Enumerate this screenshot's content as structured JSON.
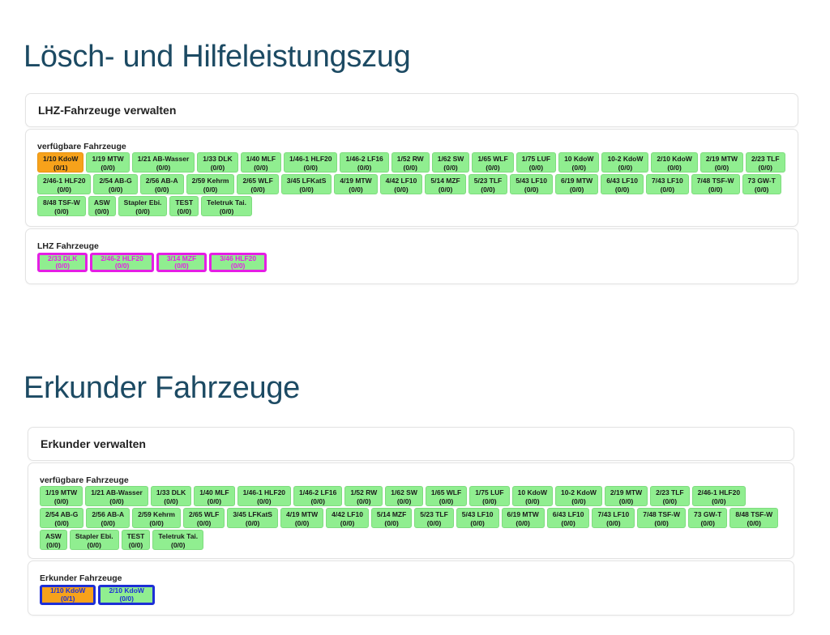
{
  "lhz": {
    "heading": "Lösch- und Hilfeleistungszug",
    "manage_title": "LHZ-Fahrzeuge verwalten",
    "available_label": "verfügbare Fahrzeuge",
    "assigned_label": "LHZ Fahrzeuge",
    "available": [
      {
        "name": "1/10 KdoW",
        "count": "(0/1)",
        "status": "orange"
      },
      {
        "name": "1/19 MTW",
        "count": "(0/0)"
      },
      {
        "name": "1/21 AB-Wasser",
        "count": "(0/0)"
      },
      {
        "name": "1/33 DLK",
        "count": "(0/0)"
      },
      {
        "name": "1/40 MLF",
        "count": "(0/0)"
      },
      {
        "name": "1/46-1 HLF20",
        "count": "(0/0)"
      },
      {
        "name": "1/46-2 LF16",
        "count": "(0/0)"
      },
      {
        "name": "1/52 RW",
        "count": "(0/0)"
      },
      {
        "name": "1/62 SW",
        "count": "(0/0)"
      },
      {
        "name": "1/65 WLF",
        "count": "(0/0)"
      },
      {
        "name": "1/75 LUF",
        "count": "(0/0)"
      },
      {
        "name": "10 KdoW",
        "count": "(0/0)"
      },
      {
        "name": "10-2 KdoW",
        "count": "(0/0)"
      },
      {
        "name": "2/10 KdoW",
        "count": "(0/0)"
      },
      {
        "name": "2/19 MTW",
        "count": "(0/0)"
      },
      {
        "name": "2/23 TLF",
        "count": "(0/0)"
      },
      {
        "name": "2/46-1 HLF20",
        "count": "(0/0)"
      },
      {
        "name": "2/54 AB-G",
        "count": "(0/0)"
      },
      {
        "name": "2/56 AB-A",
        "count": "(0/0)"
      },
      {
        "name": "2/59 Kehrm",
        "count": "(0/0)"
      },
      {
        "name": "2/65 WLF",
        "count": "(0/0)"
      },
      {
        "name": "3/45 LFKatS",
        "count": "(0/0)"
      },
      {
        "name": "4/19 MTW",
        "count": "(0/0)"
      },
      {
        "name": "4/42 LF10",
        "count": "(0/0)"
      },
      {
        "name": "5/14 MZF",
        "count": "(0/0)"
      },
      {
        "name": "5/23 TLF",
        "count": "(0/0)"
      },
      {
        "name": "5/43 LF10",
        "count": "(0/0)"
      },
      {
        "name": "6/19 MTW",
        "count": "(0/0)"
      },
      {
        "name": "6/43 LF10",
        "count": "(0/0)"
      },
      {
        "name": "7/43 LF10",
        "count": "(0/0)"
      },
      {
        "name": "7/48 TSF-W",
        "count": "(0/0)"
      },
      {
        "name": "73 GW-T",
        "count": "(0/0)"
      },
      {
        "name": "8/48 TSF-W",
        "count": "(0/0)"
      },
      {
        "name": "ASW",
        "count": "(0/0)"
      },
      {
        "name": "Stapler Ebi.",
        "count": "(0/0)"
      },
      {
        "name": "TEST",
        "count": "(0/0)"
      },
      {
        "name": "Teletruk Tai.",
        "count": "(0/0)"
      }
    ],
    "assigned": [
      {
        "name": "2/33 DLK",
        "count": "(0/0)",
        "status": "mag"
      },
      {
        "name": "2/46-2 HLF20",
        "count": "(0/0)",
        "status": "mag"
      },
      {
        "name": "3/14 MZF",
        "count": "(0/0)",
        "status": "mag"
      },
      {
        "name": "3/46 HLF20",
        "count": "(0/0)",
        "status": "mag"
      }
    ]
  },
  "erk": {
    "heading": "Erkunder Fahrzeuge",
    "manage_title": "Erkunder verwalten",
    "available_label": "verfügbare Fahrzeuge",
    "assigned_label": "Erkunder Fahrzeuge",
    "available": [
      {
        "name": "1/19 MTW",
        "count": "(0/0)"
      },
      {
        "name": "1/21 AB-Wasser",
        "count": "(0/0)"
      },
      {
        "name": "1/33 DLK",
        "count": "(0/0)"
      },
      {
        "name": "1/40 MLF",
        "count": "(0/0)"
      },
      {
        "name": "1/46-1 HLF20",
        "count": "(0/0)"
      },
      {
        "name": "1/46-2 LF16",
        "count": "(0/0)"
      },
      {
        "name": "1/52 RW",
        "count": "(0/0)"
      },
      {
        "name": "1/62 SW",
        "count": "(0/0)"
      },
      {
        "name": "1/65 WLF",
        "count": "(0/0)"
      },
      {
        "name": "1/75 LUF",
        "count": "(0/0)"
      },
      {
        "name": "10 KdoW",
        "count": "(0/0)"
      },
      {
        "name": "10-2 KdoW",
        "count": "(0/0)"
      },
      {
        "name": "2/19 MTW",
        "count": "(0/0)"
      },
      {
        "name": "2/23 TLF",
        "count": "(0/0)"
      },
      {
        "name": "2/46-1 HLF20",
        "count": "(0/0)"
      },
      {
        "name": "2/54 AB-G",
        "count": "(0/0)"
      },
      {
        "name": "2/56 AB-A",
        "count": "(0/0)"
      },
      {
        "name": "2/59 Kehrm",
        "count": "(0/0)"
      },
      {
        "name": "2/65 WLF",
        "count": "(0/0)"
      },
      {
        "name": "3/45 LFKatS",
        "count": "(0/0)"
      },
      {
        "name": "4/19 MTW",
        "count": "(0/0)"
      },
      {
        "name": "4/42 LF10",
        "count": "(0/0)"
      },
      {
        "name": "5/14 MZF",
        "count": "(0/0)"
      },
      {
        "name": "5/23 TLF",
        "count": "(0/0)"
      },
      {
        "name": "5/43 LF10",
        "count": "(0/0)"
      },
      {
        "name": "6/19 MTW",
        "count": "(0/0)"
      },
      {
        "name": "6/43 LF10",
        "count": "(0/0)"
      },
      {
        "name": "7/43 LF10",
        "count": "(0/0)"
      },
      {
        "name": "7/48 TSF-W",
        "count": "(0/0)"
      },
      {
        "name": "73 GW-T",
        "count": "(0/0)"
      },
      {
        "name": "8/48 TSF-W",
        "count": "(0/0)"
      },
      {
        "name": "ASW",
        "count": "(0/0)"
      },
      {
        "name": "Stapler Ebi.",
        "count": "(0/0)"
      },
      {
        "name": "TEST",
        "count": "(0/0)"
      },
      {
        "name": "Teletruk Tai.",
        "count": "(0/0)"
      }
    ],
    "assigned": [
      {
        "name": "1/10 KdoW",
        "count": "(0/1)",
        "status": "orangeblue"
      },
      {
        "name": "2/10 KdoW",
        "count": "(0/0)",
        "status": "greenblue"
      }
    ]
  }
}
